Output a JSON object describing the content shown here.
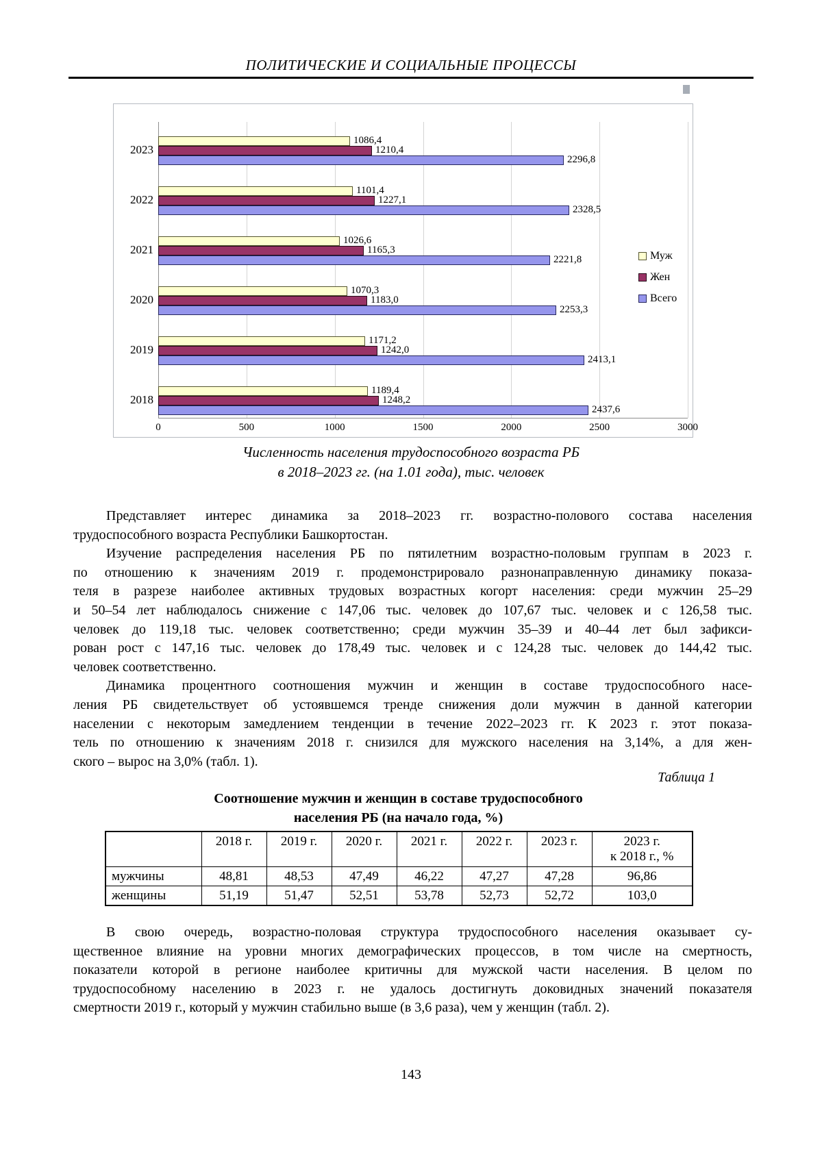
{
  "page": {
    "header": "ПОЛИТИЧЕСКИЕ И СОЦИАЛЬНЫЕ ПРОЦЕССЫ",
    "page_number": "143"
  },
  "chart_data": {
    "type": "bar",
    "orientation": "horizontal",
    "categories": [
      "2023",
      "2022",
      "2021",
      "2020",
      "2019",
      "2018"
    ],
    "series": [
      {
        "name": "Муж",
        "key": "men",
        "fill": "#ffffd0",
        "border": "#55552e",
        "values": [
          1086.4,
          1101.4,
          1026.6,
          1070.3,
          1171.2,
          1189.4
        ],
        "labels": [
          "1086,4",
          "1101,4",
          "1026,6",
          "1070,3",
          "1171,2",
          "1189,4"
        ]
      },
      {
        "name": "Жен",
        "key": "women",
        "fill": "#993366",
        "border": "#240a18",
        "values": [
          1210.4,
          1227.1,
          1165.3,
          1183.0,
          1242.0,
          1248.2
        ],
        "labels": [
          "1210,4",
          "1227,1",
          "1165,3",
          "1183,0",
          "1242,0",
          "1248,2"
        ]
      },
      {
        "name": "Всего",
        "key": "total",
        "fill": "#9595ec",
        "border": "#26265c",
        "values": [
          2296.8,
          2328.5,
          2221.8,
          2253.3,
          2413.1,
          2437.6
        ],
        "labels": [
          "2296,8",
          "2328,5",
          "2221,8",
          "2253,3",
          "2413,1",
          "2437,6"
        ]
      }
    ],
    "xlim": [
      0,
      3000
    ],
    "xticks": [
      "0",
      "500",
      "1000",
      "1500",
      "2000",
      "2500",
      "3000"
    ],
    "grid": true,
    "legend_position": "right",
    "caption_line1": "Численность населения трудоспособного возраста РБ",
    "caption_line2": "в 2018–2023 гг. (на 1.01 года), тыс. человек"
  },
  "body": {
    "paragraphs_before_table": [
      {
        "lines": [
          "Представляет интерес динамика за 2018–2023 гг. возрастно-полового состава населения",
          "трудоспособного возраста Республики Башкортостан."
        ]
      },
      {
        "lines": [
          "Изучение распределения населения РБ по пятилетним возрастно-половым группам в 2023 г.",
          "по отношению к значениям 2019 г. продемонстрировало разнонаправленную динамику показа-",
          "теля в разрезе наиболее активных трудовых возрастных когорт населения: среди мужчин 25–29",
          "и 50–54 лет наблюдалось снижение с 147,06 тыс. человек до 107,67 тыс. человек и с 126,58 тыс.",
          "человек до 119,18 тыс. человек соответственно; среди мужчин 35–39 и 40–44 лет был зафикси-",
          "рован рост с 147,16 тыс. человек до 178,49 тыс. человек и с 124,28 тыс. человек до 144,42 тыс.",
          "человек соответственно."
        ]
      },
      {
        "lines": [
          "Динамика процентного соотношения мужчин и женщин в составе трудоспособного насе-",
          "ления РБ свидетельствует об устоявшемся тренде снижения доли мужчин в данной категории",
          "населении с некоторым замедлением тенденции в течение 2022–2023 гг. К 2023 г. этот показа-",
          "тель по отношению к значениям 2018 г. снизился для мужского населения на 3,14%, а для жен-",
          "ского – вырос на 3,0% (табл. 1)."
        ]
      }
    ],
    "paragraphs_after_table": [
      {
        "lines": [
          "В свою очередь, возрастно-половая структура трудоспособного населения оказывает су-",
          "щественное влияние на уровни многих демографических процессов, в том числе на смертность,",
          "показатели которой в регионе наиболее критичны для мужской части населения. В целом по",
          "трудоспособному населению в 2023 г. не удалось достигнуть доковидных значений показателя",
          "смертности 2019 г., который у мужчин стабильно выше (в 3,6 раза), чем у женщин (табл. 2)."
        ]
      }
    ]
  },
  "table": {
    "label": "Таблица 1",
    "title_line1": "Соотношение мужчин и женщин в составе трудоспособного",
    "title_line2": "населения РБ (на начало года, %)",
    "col_headers": [
      "",
      "2018 г.",
      "2019 г.",
      "2020 г.",
      "2021 г.",
      "2022 г.",
      "2023 г.",
      "2023 г.\nк 2018 г., %"
    ],
    "rows": [
      {
        "label": "мужчины",
        "values": [
          "48,81",
          "48,53",
          "47,49",
          "46,22",
          "47,27",
          "47,28",
          "96,86"
        ]
      },
      {
        "label": "женщины",
        "values": [
          "51,19",
          "51,47",
          "52,51",
          "53,78",
          "52,73",
          "52,72",
          "103,0"
        ]
      }
    ]
  }
}
